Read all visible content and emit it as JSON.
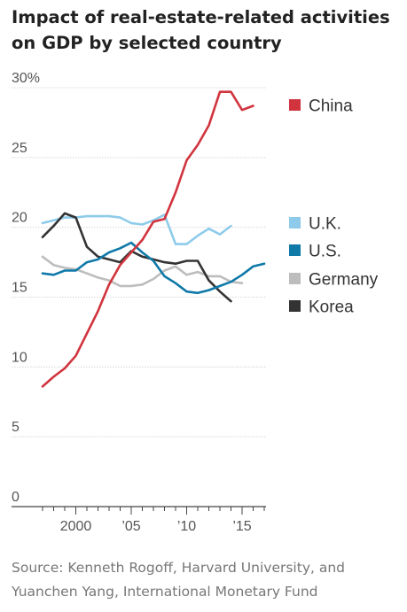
{
  "title": "Impact of real-estate-related activities on GDP by selected country",
  "source": "Source: Kenneth Rogoff, Harvard University, and Yuanchen Yang, International Monetary Fund",
  "chart_data": {
    "type": "line",
    "title": "Impact of real-estate-related activities on GDP by selected country",
    "xlabel": "",
    "ylabel": "",
    "xlim": [
      1996,
      2018
    ],
    "ylim": [
      0,
      30
    ],
    "y_ticks": [
      {
        "value": 30,
        "label": "30%"
      },
      {
        "value": 25,
        "label": "25"
      },
      {
        "value": 20,
        "label": "20"
      },
      {
        "value": 15,
        "label": "15"
      },
      {
        "value": 10,
        "label": "10"
      },
      {
        "value": 5,
        "label": "5"
      },
      {
        "value": 0,
        "label": "0"
      }
    ],
    "x_ticks": [
      {
        "value": 2000,
        "label": "2000"
      },
      {
        "value": 2005,
        "label": "’05"
      },
      {
        "value": 2010,
        "label": "’10"
      },
      {
        "value": 2015,
        "label": "’15"
      }
    ],
    "grid": true,
    "legend_position": "right",
    "series": [
      {
        "name": "China",
        "color": "#d1343e",
        "x": [
          1997,
          1998,
          1999,
          2000,
          2001,
          2002,
          2003,
          2004,
          2005,
          2006,
          2007,
          2008,
          2009,
          2010,
          2011,
          2012,
          2013,
          2014,
          2015,
          2016
        ],
        "y": [
          8.6,
          9.3,
          9.9,
          10.8,
          12.4,
          14.0,
          15.9,
          17.3,
          18.2,
          19.1,
          20.4,
          20.6,
          22.5,
          24.8,
          25.9,
          27.3,
          29.7,
          29.7,
          28.4,
          28.7
        ]
      },
      {
        "name": "U.K.",
        "color": "#8ecbeb",
        "x": [
          1997,
          1998,
          1999,
          2000,
          2001,
          2002,
          2003,
          2004,
          2005,
          2006,
          2007,
          2008,
          2009,
          2010,
          2011,
          2012,
          2013,
          2014
        ],
        "y": [
          20.3,
          20.5,
          20.7,
          20.7,
          20.8,
          20.8,
          20.8,
          20.7,
          20.3,
          20.2,
          20.5,
          20.9,
          18.8,
          18.8,
          19.4,
          19.9,
          19.5,
          20.1
        ]
      },
      {
        "name": "U.S.",
        "color": "#0f79a8",
        "x": [
          1997,
          1998,
          1999,
          2000,
          2001,
          2002,
          2003,
          2004,
          2005,
          2006,
          2007,
          2008,
          2009,
          2010,
          2011,
          2012,
          2013,
          2014,
          2015,
          2016,
          2017
        ],
        "y": [
          16.7,
          16.6,
          16.9,
          16.9,
          17.5,
          17.7,
          18.2,
          18.5,
          18.9,
          18.2,
          17.6,
          16.5,
          16.0,
          15.4,
          15.3,
          15.5,
          15.8,
          16.1,
          16.6,
          17.2,
          17.4
        ]
      },
      {
        "name": "Germany",
        "color": "#bdbdbd",
        "x": [
          1997,
          1998,
          1999,
          2000,
          2001,
          2002,
          2003,
          2004,
          2005,
          2006,
          2007,
          2008,
          2009,
          2010,
          2011,
          2012,
          2013,
          2014,
          2015
        ],
        "y": [
          17.9,
          17.3,
          17.1,
          17.0,
          16.7,
          16.4,
          16.2,
          15.8,
          15.8,
          15.9,
          16.3,
          16.9,
          17.2,
          16.6,
          16.8,
          16.5,
          16.5,
          16.1,
          16.0
        ]
      },
      {
        "name": "Korea",
        "color": "#333333",
        "x": [
          1997,
          1998,
          1999,
          2000,
          2001,
          2002,
          2003,
          2004,
          2005,
          2006,
          2007,
          2008,
          2009,
          2010,
          2011,
          2012,
          2013,
          2014
        ],
        "y": [
          19.3,
          20.1,
          21.0,
          20.7,
          18.6,
          17.9,
          17.7,
          17.5,
          18.3,
          17.9,
          17.7,
          17.5,
          17.4,
          17.6,
          17.6,
          16.2,
          15.4,
          14.7
        ]
      }
    ]
  }
}
